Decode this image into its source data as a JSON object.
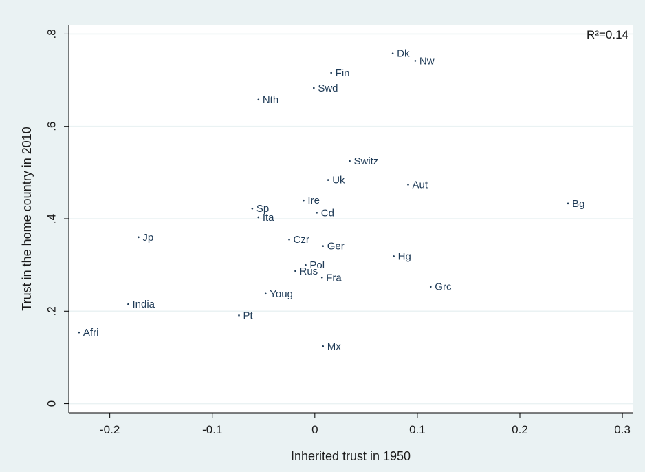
{
  "chart_data": {
    "type": "scatter",
    "title": "",
    "xlabel": "Inherited trust in 1950",
    "ylabel": "Trust in the home country in 2010",
    "annotation": "R²=0.14",
    "xlim": [
      -0.24,
      0.31
    ],
    "ylim": [
      -0.02,
      0.82
    ],
    "x_ticks": [
      -0.2,
      -0.1,
      0,
      0.1,
      0.2,
      0.3
    ],
    "x_tick_labels": [
      "-0.2",
      "-0.1",
      "0",
      "0.1",
      "0.2",
      "0.3"
    ],
    "y_ticks": [
      0,
      0.2,
      0.4,
      0.6,
      0.8
    ],
    "y_tick_labels": [
      "0",
      ".2",
      ".4",
      ".6",
      ".8"
    ],
    "grid": true,
    "colors": {
      "background": "#eaf2f3",
      "plot_area": "#ffffff",
      "gridline": "#eaf2f3",
      "marker": "#1f3b57",
      "axis": "#000000"
    },
    "points": [
      {
        "label": "Dk",
        "x": 0.076,
        "y": 0.758
      },
      {
        "label": "Nw",
        "x": 0.098,
        "y": 0.742
      },
      {
        "label": "Fin",
        "x": 0.016,
        "y": 0.716
      },
      {
        "label": "Swd",
        "x": -0.001,
        "y": 0.683
      },
      {
        "label": "Nth",
        "x": -0.055,
        "y": 0.658
      },
      {
        "label": "Switz",
        "x": 0.034,
        "y": 0.525
      },
      {
        "label": "Uk",
        "x": 0.013,
        "y": 0.484
      },
      {
        "label": "Aut",
        "x": 0.091,
        "y": 0.474
      },
      {
        "label": "Bg",
        "x": 0.247,
        "y": 0.433
      },
      {
        "label": "Ire",
        "x": -0.011,
        "y": 0.44
      },
      {
        "label": "Sp",
        "x": -0.061,
        "y": 0.422
      },
      {
        "label": "Cd",
        "x": 0.002,
        "y": 0.413
      },
      {
        "label": "Ita",
        "x": -0.055,
        "y": 0.403
      },
      {
        "label": "Jp",
        "x": -0.172,
        "y": 0.36
      },
      {
        "label": "Czr",
        "x": -0.025,
        "y": 0.355
      },
      {
        "label": "Ger",
        "x": 0.008,
        "y": 0.341
      },
      {
        "label": "Hg",
        "x": 0.077,
        "y": 0.319
      },
      {
        "label": "Pol",
        "x": -0.009,
        "y": 0.3
      },
      {
        "label": "Rus",
        "x": -0.019,
        "y": 0.287
      },
      {
        "label": "Fra",
        "x": 0.007,
        "y": 0.273
      },
      {
        "label": "Grc",
        "x": 0.113,
        "y": 0.253
      },
      {
        "label": "Youg",
        "x": -0.048,
        "y": 0.238
      },
      {
        "label": "India",
        "x": -0.182,
        "y": 0.215
      },
      {
        "label": "Pt",
        "x": -0.074,
        "y": 0.191
      },
      {
        "label": "Afri",
        "x": -0.23,
        "y": 0.154
      },
      {
        "label": "Mx",
        "x": 0.008,
        "y": 0.124
      }
    ]
  }
}
